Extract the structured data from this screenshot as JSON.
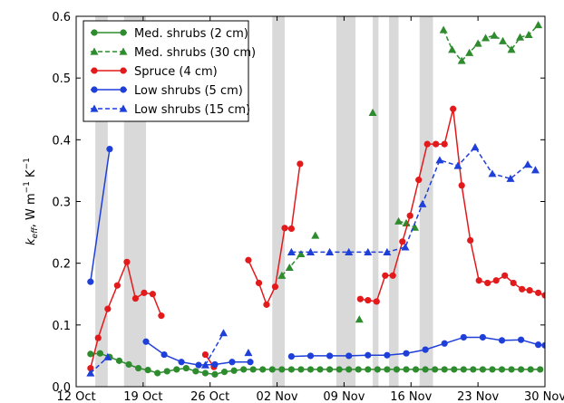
{
  "chart_data": {
    "type": "line",
    "xlabel": "",
    "ylabel": "k_eff, W m⁻¹ K⁻¹",
    "ylabel_parts": {
      "sym": "k",
      "sub": "eff",
      "rest": ", W m",
      "exp1": "−1",
      "k": " K",
      "exp2": "−1"
    },
    "xlim": [
      0,
      49
    ],
    "ylim": [
      0,
      0.6
    ],
    "x_ticks": [
      {
        "x": 0,
        "label": "12 Oct"
      },
      {
        "x": 7,
        "label": "19 Oct"
      },
      {
        "x": 14,
        "label": "26 Oct"
      },
      {
        "x": 21,
        "label": "02 Nov"
      },
      {
        "x": 28,
        "label": "09 Nov"
      },
      {
        "x": 35,
        "label": "16 Nov"
      },
      {
        "x": 42,
        "label": "23 Nov"
      },
      {
        "x": 49,
        "label": "30 Nov"
      }
    ],
    "y_ticks": [
      0.0,
      0.1,
      0.2,
      0.3,
      0.4,
      0.5,
      0.6
    ],
    "y_tick_labels": [
      "0.0",
      "0.1",
      "0.2",
      "0.3",
      "0.4",
      "0.5",
      "0.6"
    ],
    "grid": false,
    "legend_position": "top-left",
    "shaded_periods": [
      [
        2.0,
        3.3
      ],
      [
        5.0,
        7.3
      ],
      [
        20.5,
        21.8
      ],
      [
        27.2,
        29.2
      ],
      [
        31.0,
        31.6
      ],
      [
        32.7,
        33.7
      ],
      [
        35.9,
        37.3
      ]
    ],
    "series": [
      {
        "name": "Med. shrubs (2 cm)",
        "color": "#2e8b2e",
        "marker": "circle",
        "dash": false,
        "segments": [
          [
            [
              1.5,
              0.053
            ],
            [
              2.5,
              0.054
            ],
            [
              3.5,
              0.048
            ],
            [
              4.5,
              0.042
            ],
            [
              5.5,
              0.036
            ],
            [
              6.5,
              0.03
            ],
            [
              7.5,
              0.027
            ],
            [
              8.5,
              0.022
            ],
            [
              9.5,
              0.025
            ],
            [
              10.5,
              0.028
            ],
            [
              11.5,
              0.03
            ],
            [
              12.5,
              0.025
            ],
            [
              13.5,
              0.022
            ],
            [
              14.5,
              0.02
            ],
            [
              15.5,
              0.024
            ],
            [
              16.5,
              0.026
            ],
            [
              17.5,
              0.028
            ],
            [
              18.5,
              0.028
            ],
            [
              19.5,
              0.028
            ],
            [
              20.5,
              0.028
            ],
            [
              21.5,
              0.028
            ],
            [
              22.5,
              0.028
            ],
            [
              23.5,
              0.028
            ],
            [
              24.5,
              0.028
            ],
            [
              25.5,
              0.028
            ],
            [
              26.5,
              0.028
            ],
            [
              27.5,
              0.028
            ],
            [
              28.5,
              0.028
            ],
            [
              29.5,
              0.028
            ],
            [
              30.5,
              0.028
            ],
            [
              31.5,
              0.028
            ],
            [
              32.5,
              0.028
            ],
            [
              33.5,
              0.028
            ],
            [
              34.5,
              0.028
            ],
            [
              35.5,
              0.028
            ],
            [
              36.5,
              0.028
            ],
            [
              37.5,
              0.028
            ],
            [
              38.5,
              0.028
            ],
            [
              39.5,
              0.028
            ],
            [
              40.5,
              0.028
            ],
            [
              41.5,
              0.028
            ],
            [
              42.5,
              0.028
            ],
            [
              43.5,
              0.028
            ],
            [
              44.5,
              0.028
            ],
            [
              45.5,
              0.028
            ],
            [
              46.5,
              0.028
            ],
            [
              47.5,
              0.028
            ],
            [
              48.5,
              0.028
            ]
          ]
        ]
      },
      {
        "name": "Med. shrubs (30 cm)",
        "color": "#2e8b2e",
        "marker": "triangle",
        "dash": true,
        "segments": [
          [
            [
              21.5,
              0.18
            ],
            [
              22.3,
              0.193
            ],
            [
              23.5,
              0.215
            ]
          ],
          [
            [
              25.0,
              0.245
            ]
          ],
          [
            [
              29.6,
              0.109
            ]
          ],
          [
            [
              31.0,
              0.444
            ]
          ],
          [
            [
              33.7,
              0.268
            ],
            [
              34.5,
              0.265
            ],
            [
              35.4,
              0.258
            ]
          ],
          [
            [
              38.4,
              0.578
            ],
            [
              39.3,
              0.546
            ],
            [
              40.3,
              0.528
            ],
            [
              41.1,
              0.541
            ],
            [
              42.0,
              0.556
            ],
            [
              42.8,
              0.565
            ],
            [
              43.7,
              0.569
            ],
            [
              44.6,
              0.56
            ],
            [
              45.5,
              0.546
            ],
            [
              46.4,
              0.566
            ],
            [
              47.3,
              0.57
            ],
            [
              48.3,
              0.586
            ]
          ]
        ]
      },
      {
        "name": "Spruce (4 cm)",
        "color": "#e31a1c",
        "marker": "circle",
        "dash": false,
        "segments": [
          [
            [
              1.5,
              0.03
            ],
            [
              2.3,
              0.079
            ],
            [
              3.3,
              0.126
            ],
            [
              4.3,
              0.164
            ],
            [
              5.3,
              0.202
            ],
            [
              6.2,
              0.143
            ],
            [
              7.1,
              0.152
            ],
            [
              8.0,
              0.15
            ],
            [
              8.9,
              0.115
            ]
          ],
          [
            [
              13.5,
              0.052
            ],
            [
              14.4,
              0.032
            ]
          ],
          [
            [
              18.0,
              0.205
            ],
            [
              19.1,
              0.168
            ],
            [
              19.9,
              0.133
            ],
            [
              20.8,
              0.162
            ],
            [
              21.8,
              0.257
            ],
            [
              22.5,
              0.256
            ],
            [
              23.4,
              0.361
            ]
          ],
          [
            [
              29.7,
              0.142
            ],
            [
              30.5,
              0.14
            ],
            [
              31.4,
              0.138
            ],
            [
              32.3,
              0.18
            ],
            [
              33.1,
              0.18
            ],
            [
              34.1,
              0.235
            ],
            [
              34.9,
              0.277
            ],
            [
              35.8,
              0.335
            ],
            [
              36.7,
              0.393
            ],
            [
              37.6,
              0.393
            ],
            [
              38.5,
              0.393
            ],
            [
              39.4,
              0.45
            ],
            [
              40.3,
              0.326
            ],
            [
              41.2,
              0.237
            ],
            [
              42.1,
              0.172
            ],
            [
              43.0,
              0.168
            ],
            [
              43.9,
              0.172
            ],
            [
              44.8,
              0.18
            ],
            [
              45.7,
              0.168
            ],
            [
              46.6,
              0.158
            ],
            [
              47.4,
              0.156
            ],
            [
              48.3,
              0.152
            ],
            [
              49.0,
              0.148
            ]
          ]
        ]
      },
      {
        "name": "Low shrubs (5 cm)",
        "color": "#1f3fd9",
        "marker": "circle",
        "dash": false,
        "segments": [
          [
            [
              1.5,
              0.17
            ],
            [
              3.5,
              0.385
            ]
          ],
          [
            [
              7.3,
              0.073
            ],
            [
              9.2,
              0.052
            ],
            [
              11.0,
              0.04
            ],
            [
              12.8,
              0.035
            ],
            [
              14.5,
              0.036
            ],
            [
              16.3,
              0.04
            ],
            [
              18.2,
              0.04
            ]
          ],
          [
            [
              22.5,
              0.049
            ],
            [
              24.5,
              0.05
            ],
            [
              26.5,
              0.05
            ],
            [
              28.5,
              0.05
            ],
            [
              30.5,
              0.051
            ],
            [
              32.5,
              0.051
            ],
            [
              34.5,
              0.054
            ],
            [
              36.5,
              0.06
            ],
            [
              38.5,
              0.07
            ],
            [
              40.5,
              0.08
            ],
            [
              42.5,
              0.08
            ],
            [
              44.5,
              0.075
            ],
            [
              46.5,
              0.076
            ],
            [
              48.3,
              0.068
            ],
            [
              49.0,
              0.067
            ]
          ]
        ]
      },
      {
        "name": "Low shrubs (15 cm)",
        "color": "#1f3fd9",
        "marker": "triangle",
        "dash": true,
        "segments": [
          [
            [
              1.5,
              0.022
            ],
            [
              3.3,
              0.048
            ]
          ],
          [
            [
              13.5,
              0.035
            ],
            [
              15.4,
              0.087
            ]
          ],
          [
            [
              18.0,
              0.055
            ]
          ],
          [
            [
              22.5,
              0.218
            ],
            [
              24.5,
              0.218
            ],
            [
              26.5,
              0.218
            ],
            [
              28.5,
              0.218
            ],
            [
              30.5,
              0.218
            ],
            [
              32.5,
              0.218
            ],
            [
              34.4,
              0.226
            ],
            [
              36.2,
              0.296
            ],
            [
              38.0,
              0.367
            ],
            [
              39.9,
              0.358
            ],
            [
              41.7,
              0.388
            ],
            [
              43.5,
              0.345
            ],
            [
              45.4,
              0.337
            ],
            [
              47.2,
              0.36
            ],
            [
              48.0,
              0.351
            ]
          ]
        ]
      }
    ]
  }
}
